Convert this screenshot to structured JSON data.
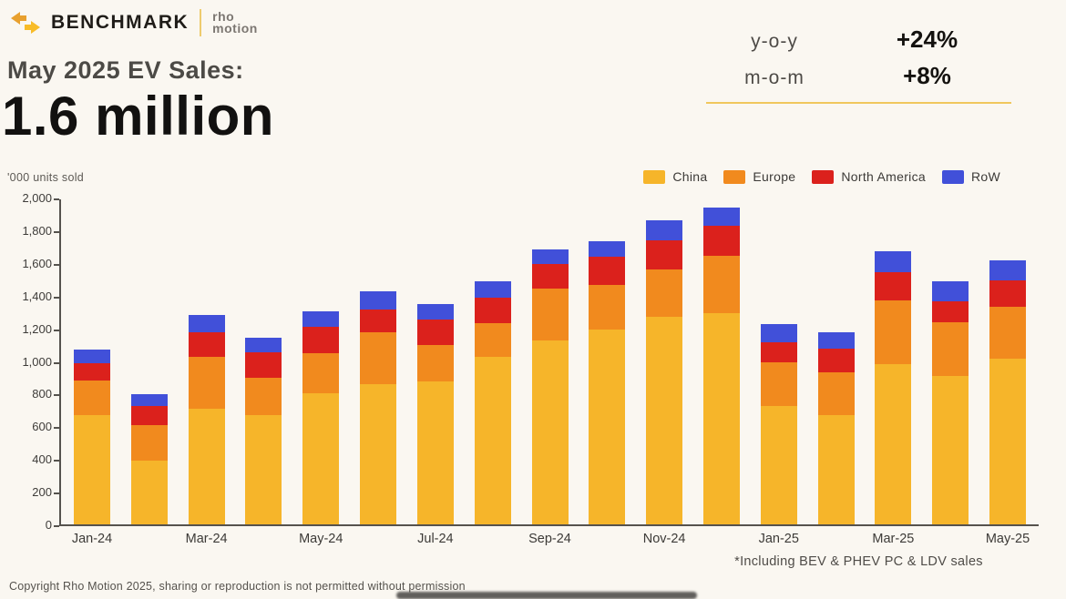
{
  "header": {
    "brand": "BENCHMARK",
    "partner_line1": "rho",
    "partner_line2": "motion",
    "title": "May 2025 EV Sales:",
    "headline": "1.6 million"
  },
  "stats": {
    "yoy_label": "y-o-y",
    "yoy_value": "+24%",
    "mom_label": "m-o-m",
    "mom_value": "+8%"
  },
  "chart_data": {
    "type": "bar",
    "stacked": true,
    "ylabel": "'000 units sold",
    "ylim": [
      0,
      2000
    ],
    "ytick_step": 200,
    "ytick_labels": [
      "0",
      "200",
      "400",
      "600",
      "800",
      "1,000",
      "1,200",
      "1,400",
      "1,600",
      "1,800",
      "2,000"
    ],
    "grid": false,
    "legend_position": "top-right",
    "categories": [
      "Jan-24",
      "Feb-24",
      "Mar-24",
      "Apr-24",
      "May-24",
      "Jun-24",
      "Jul-24",
      "Aug-24",
      "Sep-24",
      "Oct-24",
      "Nov-24",
      "Dec-24",
      "Jan-25",
      "Feb-25",
      "Mar-25",
      "Apr-25",
      "May-25"
    ],
    "xtick_labels_shown": [
      "Jan-24",
      "Mar-24",
      "May-24",
      "Jul-24",
      "Sep-24",
      "Nov-24",
      "Jan-25",
      "Mar-25",
      "May-25"
    ],
    "series": [
      {
        "name": "China",
        "color": "#f6b52a",
        "values": [
          670,
          390,
          710,
          675,
          805,
          865,
          880,
          1030,
          1130,
          1200,
          1280,
          1300,
          730,
          670,
          985,
          915,
          1020
        ]
      },
      {
        "name": "Europe",
        "color": "#f18a1e",
        "values": [
          215,
          220,
          320,
          225,
          250,
          315,
          225,
          210,
          320,
          275,
          290,
          350,
          270,
          265,
          395,
          330,
          320
        ]
      },
      {
        "name": "North America",
        "color": "#db211c",
        "values": [
          105,
          120,
          155,
          160,
          160,
          145,
          155,
          155,
          150,
          170,
          180,
          185,
          120,
          145,
          170,
          125,
          160
        ]
      },
      {
        "name": "RoW",
        "color": "#4150d9",
        "values": [
          85,
          70,
          105,
          90,
          95,
          110,
          95,
          100,
          90,
          100,
          120,
          115,
          110,
          105,
          130,
          125,
          125
        ]
      }
    ]
  },
  "footnote": "*Including BEV & PHEV PC & LDV sales",
  "copyright": "Copyright Rho Motion 2025, sharing or reproduction is not permitted without permission",
  "colors": {
    "background": "#faf7f1",
    "accent_line": "#f0c75d",
    "axis": "#55524d",
    "headline_text": "#121110",
    "muted_text": "#4c4a46"
  }
}
